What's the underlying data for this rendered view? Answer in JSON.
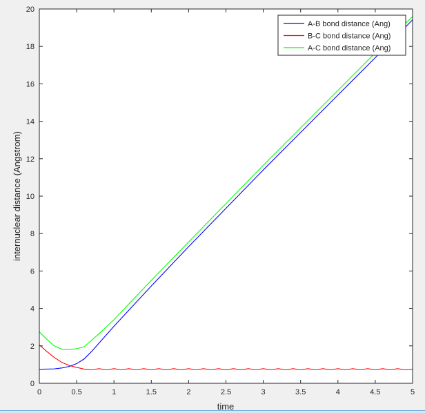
{
  "chart_data": {
    "type": "line",
    "title": "",
    "xlabel": "time",
    "ylabel": "internuclear distance (Angstrom)",
    "xlim": [
      0,
      5
    ],
    "ylim": [
      0,
      20
    ],
    "xticks": [
      0,
      0.5,
      1,
      1.5,
      2,
      2.5,
      3,
      3.5,
      4,
      4.5,
      5
    ],
    "xtick_labels": [
      "0",
      "0.5",
      "1",
      "1.5",
      "2",
      "2.5",
      "3",
      "3.5",
      "4",
      "4.5",
      "5"
    ],
    "yticks": [
      0,
      2,
      4,
      6,
      8,
      10,
      12,
      14,
      16,
      18,
      20
    ],
    "ytick_labels": [
      "0",
      "2",
      "4",
      "6",
      "8",
      "10",
      "12",
      "14",
      "16",
      "18",
      "20"
    ],
    "grid": false,
    "legend_position": "top-right",
    "series": [
      {
        "name": "A-B bond distance (Ang)",
        "color": "#0000ff",
        "x": [
          0,
          0.2,
          0.3,
          0.4,
          0.5,
          0.6,
          0.7,
          0.8,
          1.0,
          1.5,
          2.0,
          2.5,
          3.0,
          3.5,
          4.0,
          4.5,
          5.0
        ],
        "y": [
          0.75,
          0.77,
          0.82,
          0.9,
          1.05,
          1.3,
          1.7,
          2.15,
          3.05,
          5.2,
          7.3,
          9.35,
          11.4,
          13.4,
          15.4,
          17.4,
          19.42
        ]
      },
      {
        "name": "B-C bond distance (Ang)",
        "color": "#ff0000",
        "x": [
          0,
          0.1,
          0.2,
          0.3,
          0.4,
          0.5,
          0.6,
          0.7,
          0.8,
          0.9,
          1.0,
          1.1,
          1.2,
          1.3,
          1.4,
          1.5,
          1.6,
          1.7,
          1.8,
          1.9,
          2.0,
          2.1,
          2.2,
          2.3,
          2.4,
          2.5,
          2.6,
          2.7,
          2.8,
          2.9,
          3.0,
          3.1,
          3.2,
          3.3,
          3.4,
          3.5,
          3.6,
          3.7,
          3.8,
          3.9,
          4.0,
          4.1,
          4.2,
          4.3,
          4.4,
          4.5,
          4.6,
          4.7,
          4.8,
          4.9,
          5.0
        ],
        "y": [
          2.05,
          1.7,
          1.38,
          1.12,
          0.95,
          0.85,
          0.76,
          0.72,
          0.78,
          0.72,
          0.78,
          0.72,
          0.78,
          0.72,
          0.78,
          0.72,
          0.78,
          0.72,
          0.78,
          0.72,
          0.78,
          0.72,
          0.78,
          0.72,
          0.78,
          0.72,
          0.78,
          0.72,
          0.78,
          0.72,
          0.78,
          0.72,
          0.78,
          0.72,
          0.78,
          0.72,
          0.78,
          0.72,
          0.78,
          0.72,
          0.78,
          0.72,
          0.78,
          0.72,
          0.78,
          0.72,
          0.78,
          0.72,
          0.78,
          0.72,
          0.75
        ]
      },
      {
        "name": "A-C bond distance (Ang)",
        "color": "#00ff00",
        "x": [
          0,
          0.1,
          0.2,
          0.3,
          0.4,
          0.5,
          0.6,
          0.7,
          0.8,
          1.0,
          1.5,
          2.0,
          2.5,
          3.0,
          3.5,
          4.0,
          4.5,
          5.0
        ],
        "y": [
          2.75,
          2.35,
          2.0,
          1.82,
          1.8,
          1.85,
          1.95,
          2.3,
          2.65,
          3.4,
          5.5,
          7.55,
          9.6,
          11.65,
          13.65,
          15.65,
          17.65,
          19.6
        ]
      }
    ]
  }
}
